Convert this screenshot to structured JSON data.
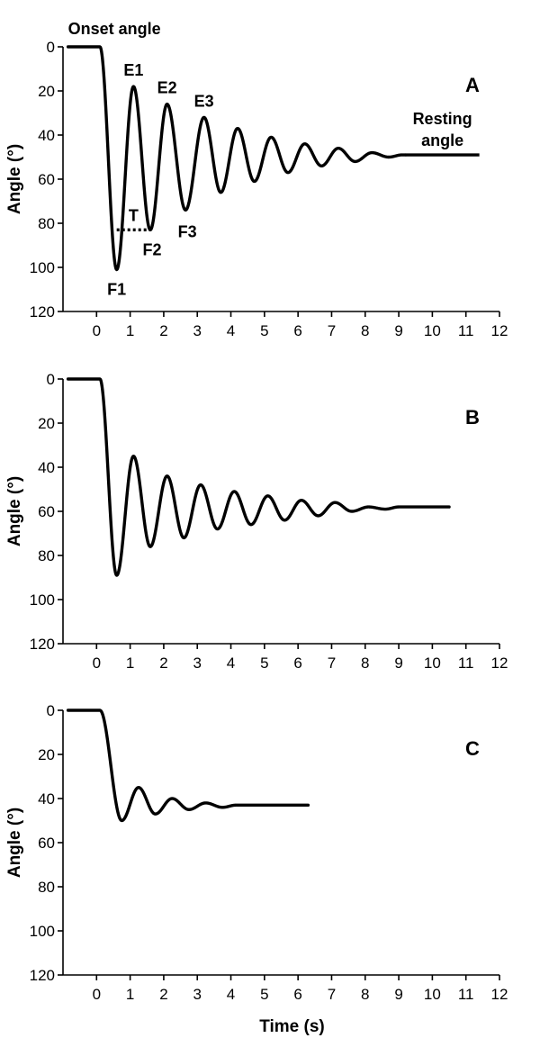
{
  "chart_data": [
    {
      "type": "line",
      "panel": "A",
      "xlabel": "",
      "ylabel": "Angle (°)",
      "xlim": [
        -1,
        12
      ],
      "ylim": [
        0,
        120
      ],
      "y_inverted": true,
      "x_ticks": [
        0,
        1,
        2,
        3,
        4,
        5,
        6,
        7,
        8,
        9,
        10,
        11,
        12
      ],
      "y_ticks": [
        0,
        20,
        40,
        60,
        80,
        100,
        120
      ],
      "grid": false,
      "trace": {
        "start": -0.85,
        "onset": 0.1,
        "end": 9.2,
        "extrema": [
          {
            "t": 0.6,
            "y": 101
          },
          {
            "t": 1.1,
            "y": 18
          },
          {
            "t": 1.6,
            "y": 83
          },
          {
            "t": 2.1,
            "y": 26
          },
          {
            "t": 2.65,
            "y": 74
          },
          {
            "t": 3.2,
            "y": 32
          },
          {
            "t": 3.7,
            "y": 66
          },
          {
            "t": 4.2,
            "y": 37
          },
          {
            "t": 4.7,
            "y": 61
          },
          {
            "t": 5.2,
            "y": 41
          },
          {
            "t": 5.7,
            "y": 57
          },
          {
            "t": 6.2,
            "y": 44
          },
          {
            "t": 6.7,
            "y": 54
          },
          {
            "t": 7.2,
            "y": 46
          },
          {
            "t": 7.7,
            "y": 52
          },
          {
            "t": 8.2,
            "y": 48
          },
          {
            "t": 8.7,
            "y": 50
          }
        ],
        "final": 49
      },
      "resting_line": {
        "x": [
          9.2,
          11.4
        ],
        "y": 49
      },
      "period_marker": {
        "x": [
          0.6,
          1.6
        ],
        "y": 83,
        "label": "T"
      },
      "annotations": [
        {
          "text": "Onset angle",
          "x": -0.85,
          "y": 0
        },
        {
          "text": "E1",
          "x": 1.1,
          "y": 18
        },
        {
          "text": "E2",
          "x": 2.1,
          "y": 26
        },
        {
          "text": "E3",
          "x": 3.2,
          "y": 32
        },
        {
          "text": "F1",
          "x": 0.6,
          "y": 101
        },
        {
          "text": "F2",
          "x": 1.6,
          "y": 83
        },
        {
          "text": "F3",
          "x": 2.65,
          "y": 74
        },
        {
          "text": "Resting",
          "x": 10.3,
          "y": 49
        },
        {
          "text": "angle",
          "x": 10.3,
          "y": 49
        }
      ]
    },
    {
      "type": "line",
      "panel": "B",
      "xlabel": "",
      "ylabel": "Angle (°)",
      "xlim": [
        -1,
        12
      ],
      "ylim": [
        0,
        120
      ],
      "y_inverted": true,
      "x_ticks": [
        0,
        1,
        2,
        3,
        4,
        5,
        6,
        7,
        8,
        9,
        10,
        11,
        12
      ],
      "y_ticks": [
        0,
        20,
        40,
        60,
        80,
        100,
        120
      ],
      "grid": false,
      "trace": {
        "start": -0.85,
        "onset": 0.1,
        "end": 10.5,
        "extrema": [
          {
            "t": 0.6,
            "y": 89
          },
          {
            "t": 1.1,
            "y": 35
          },
          {
            "t": 1.6,
            "y": 76
          },
          {
            "t": 2.1,
            "y": 44
          },
          {
            "t": 2.6,
            "y": 72
          },
          {
            "t": 3.1,
            "y": 48
          },
          {
            "t": 3.6,
            "y": 68
          },
          {
            "t": 4.1,
            "y": 51
          },
          {
            "t": 4.6,
            "y": 66
          },
          {
            "t": 5.1,
            "y": 53
          },
          {
            "t": 5.6,
            "y": 64
          },
          {
            "t": 6.1,
            "y": 55
          },
          {
            "t": 6.6,
            "y": 62
          },
          {
            "t": 7.1,
            "y": 56
          },
          {
            "t": 7.6,
            "y": 60
          },
          {
            "t": 8.1,
            "y": 58
          },
          {
            "t": 8.6,
            "y": 59
          }
        ],
        "final": 58
      },
      "annotations": []
    },
    {
      "type": "line",
      "panel": "C",
      "xlabel": "Time (s)",
      "ylabel": "Angle (°)",
      "xlim": [
        -1,
        12
      ],
      "ylim": [
        0,
        120
      ],
      "y_inverted": true,
      "x_ticks": [
        0,
        1,
        2,
        3,
        4,
        5,
        6,
        7,
        8,
        9,
        10,
        11,
        12
      ],
      "y_ticks": [
        0,
        20,
        40,
        60,
        80,
        100,
        120
      ],
      "grid": false,
      "trace": {
        "start": -0.85,
        "onset": 0.1,
        "end": 6.3,
        "extrema": [
          {
            "t": 0.75,
            "y": 50
          },
          {
            "t": 1.25,
            "y": 35
          },
          {
            "t": 1.75,
            "y": 47
          },
          {
            "t": 2.25,
            "y": 40
          },
          {
            "t": 2.75,
            "y": 45
          },
          {
            "t": 3.25,
            "y": 42
          },
          {
            "t": 3.75,
            "y": 44
          }
        ],
        "final": 43
      },
      "annotations": []
    }
  ]
}
